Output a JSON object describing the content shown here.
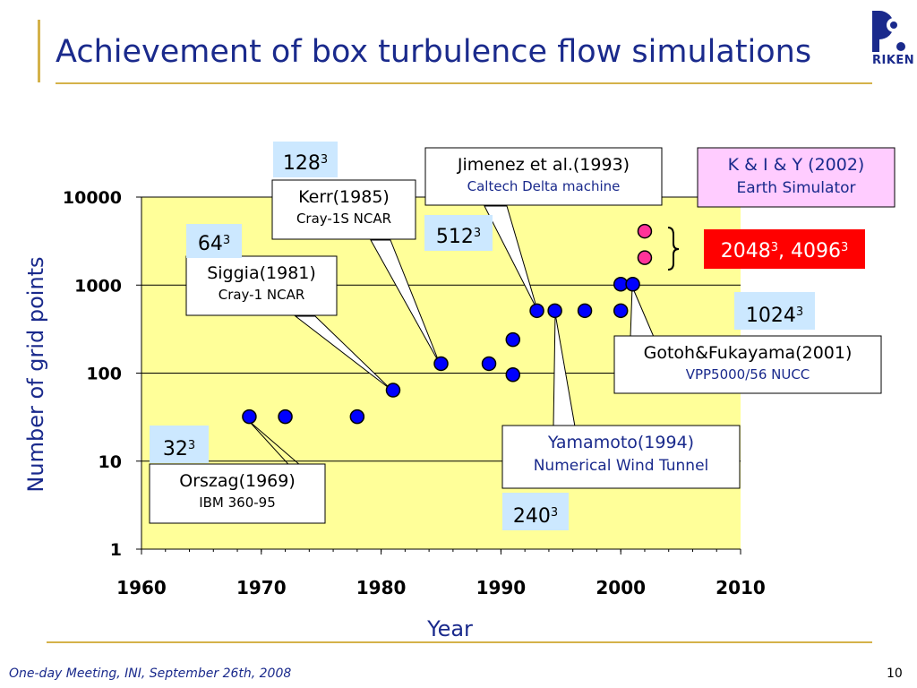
{
  "slide": {
    "title": "Achievement of box turbulence flow simulations",
    "logo_text": "RIKEN",
    "footer": "One-day Meeting, INI, September 26th, 2008",
    "page_number": "10"
  },
  "colors": {
    "title": "#1a2a8c",
    "plot_bg": "#ffff99",
    "point": "#0000ff",
    "point_future": "#ff3399",
    "rule": "#d4b24a",
    "label_blue_bg": "#cce8ff",
    "label_pink_bg": "#ffccff",
    "label_red_bg": "#ff0000"
  },
  "chart_data": {
    "type": "scatter",
    "title": "",
    "xlabel": "Year",
    "ylabel": "Number of grid points",
    "xlim": [
      1960,
      2010
    ],
    "ylim": [
      1,
      10000
    ],
    "y_scale": "log",
    "x_ticks": [
      "1960",
      "1970",
      "1980",
      "1990",
      "2000",
      "2010"
    ],
    "y_ticks": [
      "1",
      "10",
      "100",
      "1000",
      "10000"
    ],
    "grid": "horizontal",
    "series": [
      {
        "x": [
          1969,
          1972,
          1978,
          1981,
          1985,
          1989,
          1991,
          1991,
          1993,
          1994.5,
          1997,
          2000,
          2000,
          2001
        ],
        "y": [
          32,
          32,
          32,
          64,
          128,
          128,
          96,
          240,
          512,
          512,
          512,
          512,
          1024,
          1024
        ]
      },
      {
        "x": [
          2002,
          2002
        ],
        "y": [
          2048,
          4096
        ]
      }
    ],
    "annotations": {
      "orszag": {
        "name": "Orszag(1969)",
        "machine": "IBM 360-95"
      },
      "siggia": {
        "name": "Siggia(1981)",
        "machine": "Cray-1 NCAR"
      },
      "kerr": {
        "name": "Kerr(1985)",
        "machine": "Cray-1S NCAR"
      },
      "jimenez": {
        "name": "Jimenez et al.(1993)",
        "machine": "Caltech Delta machine"
      },
      "kiy": {
        "name": "K & I & Y (2002)",
        "machine": "Earth Simulator"
      },
      "gotoh": {
        "name": "Gotoh&Fukayama(2001)",
        "machine": "VPP5000/56 NUCC"
      },
      "yamamoto": {
        "name": "Yamamoto(1994)",
        "machine": "Numerical Wind Tunnel"
      }
    },
    "grid_labels": {
      "g32": {
        "base": "32",
        "exp": "3"
      },
      "g64": {
        "base": "64",
        "exp": "3"
      },
      "g128": {
        "base": "128",
        "exp": "3"
      },
      "g512": {
        "base": "512",
        "exp": "3"
      },
      "g1024": {
        "base": "1024",
        "exp": "3"
      },
      "g240": {
        "base": "240",
        "exp": "3"
      },
      "g2048": {
        "base": "2048",
        "exp": "3",
        "sep": ", "
      },
      "g4096": {
        "base": "4096",
        "exp": "3"
      }
    }
  }
}
